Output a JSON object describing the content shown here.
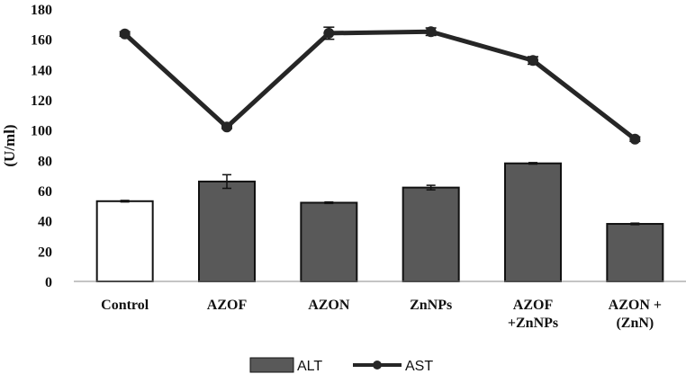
{
  "chart_data": {
    "type": "bar",
    "title": "",
    "xlabel": "",
    "ylabel": "(U/ml)",
    "ylim": [
      0,
      180
    ],
    "yticks": [
      0,
      20,
      40,
      60,
      80,
      100,
      120,
      140,
      160,
      180
    ],
    "grid": false,
    "legend_position": "bottom",
    "categories": [
      [
        "Control"
      ],
      [
        "AZOF"
      ],
      [
        "AZON"
      ],
      [
        "ZnNPs"
      ],
      [
        "AZOF",
        "+ZnNPs"
      ],
      [
        "AZON +",
        "(ZnN)"
      ]
    ],
    "series": [
      {
        "name": "ALT",
        "kind": "bar",
        "values": [
          53,
          66,
          52,
          62,
          78,
          38
        ],
        "errors": [
          0.5,
          4.5,
          0.5,
          1.5,
          0.5,
          0.5
        ],
        "color": "#595959",
        "control_color": "#ffffff"
      },
      {
        "name": "AST",
        "kind": "line",
        "values": [
          163.5,
          102,
          164,
          165,
          146,
          94
        ],
        "errors": [
          1.5,
          1,
          4,
          2.5,
          2.5,
          1.5
        ],
        "color": "#262626"
      }
    ]
  }
}
